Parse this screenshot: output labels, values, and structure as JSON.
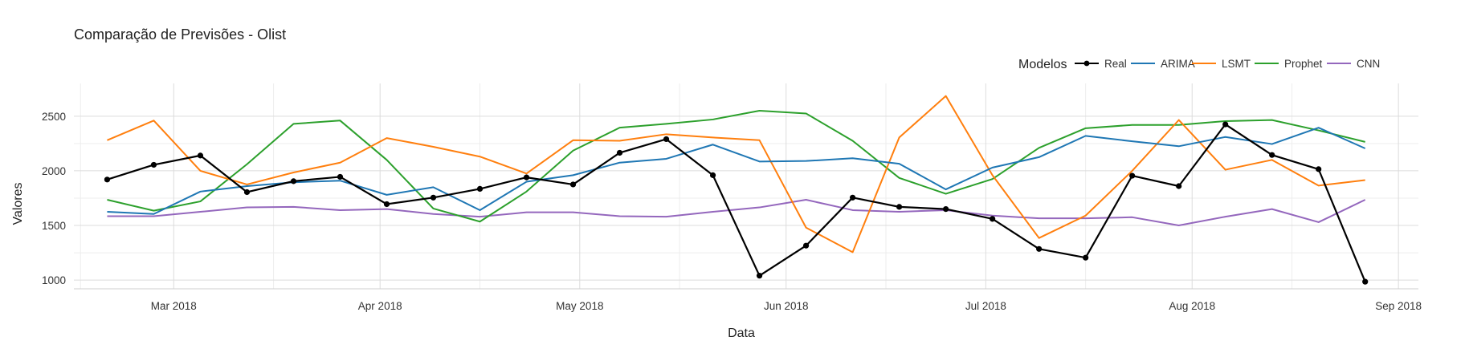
{
  "chart_data": {
    "type": "line",
    "title": "Comparação de Previsões - Olist",
    "xlabel": "Data",
    "ylabel": "Valores",
    "x_axis_type": "date",
    "xlim": [
      "2018-02-14",
      "2018-09-04"
    ],
    "ylim": [
      920,
      2800
    ],
    "x_ticks": [
      {
        "date": "2018-03-01",
        "label": "Mar 2018"
      },
      {
        "date": "2018-04-01",
        "label": "Apr 2018"
      },
      {
        "date": "2018-05-01",
        "label": "May 2018"
      },
      {
        "date": "2018-06-01",
        "label": "Jun 2018"
      },
      {
        "date": "2018-07-01",
        "label": "Jul 2018"
      },
      {
        "date": "2018-08-01",
        "label": "Aug 2018"
      },
      {
        "date": "2018-09-01",
        "label": "Sep 2018"
      }
    ],
    "y_ticks": [
      1000,
      1500,
      2000,
      2500
    ],
    "grid": true,
    "legend": {
      "title": "Modelos",
      "position": "top-right"
    },
    "x": [
      "2018-02-19",
      "2018-02-26",
      "2018-03-05",
      "2018-03-12",
      "2018-03-19",
      "2018-03-26",
      "2018-04-02",
      "2018-04-09",
      "2018-04-16",
      "2018-04-23",
      "2018-04-30",
      "2018-05-07",
      "2018-05-14",
      "2018-05-21",
      "2018-05-28",
      "2018-06-04",
      "2018-06-11",
      "2018-06-18",
      "2018-06-25",
      "2018-07-02",
      "2018-07-09",
      "2018-07-16",
      "2018-07-23",
      "2018-07-30",
      "2018-08-06",
      "2018-08-13",
      "2018-08-20",
      "2018-08-27"
    ],
    "series": [
      {
        "name": "Real",
        "color": "#000000",
        "markers": true,
        "values": [
          1920,
          2055,
          2140,
          1805,
          1905,
          1945,
          1695,
          1755,
          1835,
          1940,
          1875,
          2165,
          2290,
          1960,
          1040,
          1315,
          1755,
          1670,
          1650,
          1560,
          1285,
          1205,
          1955,
          1860,
          2425,
          2145,
          2015,
          985
        ]
      },
      {
        "name": "ARIMA",
        "color": "#1f77b4",
        "markers": false,
        "values": [
          1625,
          1605,
          1810,
          1860,
          1895,
          1910,
          1780,
          1850,
          1640,
          1900,
          1960,
          2075,
          2110,
          2240,
          2085,
          2090,
          2115,
          2065,
          1830,
          2030,
          2125,
          2320,
          2270,
          2225,
          2310,
          2245,
          2395,
          2205
        ]
      },
      {
        "name": "LSMT",
        "color": "#ff7f0e",
        "markers": false,
        "values": [
          2280,
          2460,
          2000,
          1875,
          1985,
          2075,
          2300,
          2220,
          2130,
          1975,
          2280,
          2275,
          2335,
          2305,
          2280,
          1480,
          1255,
          2305,
          2685,
          1960,
          1385,
          1590,
          2000,
          2465,
          2010,
          2100,
          1865,
          1915
        ]
      },
      {
        "name": "Prophet",
        "color": "#2ca02c",
        "markers": false,
        "values": [
          1735,
          1635,
          1720,
          2060,
          2430,
          2460,
          2100,
          1655,
          1535,
          1810,
          2185,
          2395,
          2430,
          2470,
          2550,
          2525,
          2275,
          1935,
          1790,
          1925,
          2210,
          2390,
          2420,
          2420,
          2455,
          2465,
          2370,
          2265
        ]
      },
      {
        "name": "CNN",
        "color": "#9467bd",
        "markers": false,
        "values": [
          1585,
          1585,
          1625,
          1665,
          1670,
          1640,
          1650,
          1605,
          1580,
          1620,
          1620,
          1585,
          1580,
          1625,
          1665,
          1735,
          1640,
          1625,
          1640,
          1590,
          1565,
          1565,
          1575,
          1500,
          1580,
          1650,
          1530,
          1735
        ]
      }
    ]
  }
}
